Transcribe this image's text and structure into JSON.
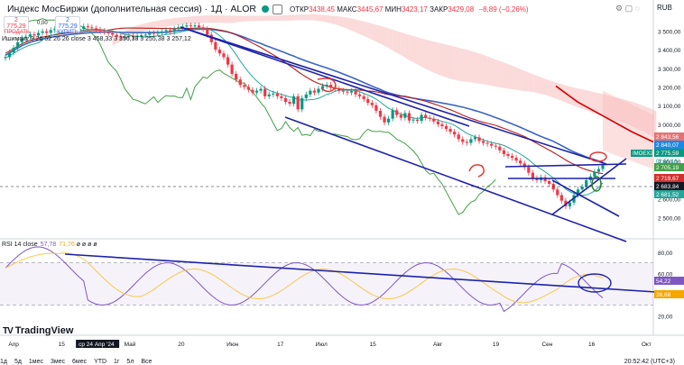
{
  "header": {
    "symbol": "Индекс МосБиржи (дополнительная сессия) · 1Д · ALOR",
    "open_label": "ОТКР",
    "open": "3438,45",
    "high_label": "МАКС",
    "high": "3445,67",
    "low_label": "МИН",
    "low": "3423,17",
    "close_label": "ЗАКР",
    "close": "3429,08",
    "change": "−8,89 (−0,26%)",
    "currency": "RUB",
    "sell_price": "2 775,29",
    "sell_label": "ПРОДАТЬ",
    "buy_price": "2 775,29",
    "buy_label": "КУПИТЬ",
    "spread": "0,00"
  },
  "ichimoku_label": "Ишимоку 9 26 52 26 26 close  3 458,33  3 356,38  3 255,38  3 257,12",
  "rsi_label": {
    "name": "RSI 14 close",
    "value": "57,78",
    "ma": "71,76",
    "extra": "ø ø ø ø"
  },
  "logo": {
    "mark": "TV",
    "text": "TradingView"
  },
  "bottom_bar": {
    "ranges": [
      "1д",
      "5д",
      "1мес",
      "3мес",
      "6мес",
      "YTD",
      "1г",
      "5л",
      "Все"
    ],
    "clock": "20:52:42 (UTC+3)"
  },
  "colors": {
    "candle_up": "#089981",
    "candle_down": "#f23645",
    "blue_line": "#1e22aa",
    "ema": "#3b64c7",
    "kijun": "#b71c1c",
    "tenkan": "#26a69a",
    "lagging": "#43a047",
    "cloud_green": "#a5d6a7",
    "cloud_red": "#f8bbbb",
    "rsi": "#7e57c2",
    "rsi_ma": "#f7c948",
    "annot": "#e53935"
  },
  "chart_data": [
    {
      "type": "candlestick",
      "title": "Индекс МосБиржи (дополнительная сессия) · 1Д · ALOR",
      "ylim": [
        2400,
        3560
      ],
      "y_ticks": [
        "3 500,00",
        "3 400,00",
        "3 300,00",
        "3 200,00",
        "3 100,00",
        "3 000,00",
        "2 900,00",
        "2 800,00",
        "2 700,00",
        "2 600,00",
        "2 500,00"
      ],
      "y_tick_values": [
        3500,
        3400,
        3300,
        3200,
        3100,
        3000,
        2900,
        2800,
        2700,
        2600,
        2500
      ],
      "x_ticks": [
        "Апр",
        "15",
        "ср 24 Апр '24",
        "Май",
        "20",
        "Июн",
        "17",
        "Июл",
        "15",
        "Авг",
        "19",
        "Сен",
        "16",
        "Окт"
      ],
      "close_series": [
        3360,
        3385,
        3410,
        3440,
        3462,
        3470,
        3482,
        3476,
        3490,
        3498,
        3490,
        3505,
        3512,
        3500,
        3510,
        3520,
        3515,
        3505,
        3512,
        3525,
        3520,
        3515,
        3508,
        3500,
        3495,
        3488,
        3480,
        3470,
        3465,
        3468,
        3472,
        3470,
        3475,
        3478,
        3480,
        3490,
        3486,
        3492,
        3498,
        3505,
        3495,
        3512,
        3520,
        3524,
        3530,
        3528,
        3530,
        3520,
        3510,
        3480,
        3440,
        3400,
        3380,
        3360,
        3320,
        3270,
        3240,
        3210,
        3200,
        3185,
        3170,
        3180,
        3190,
        3150,
        3160,
        3165,
        3150,
        3140,
        3120,
        3110,
        3150,
        3080,
        3140,
        3160,
        3180,
        3170,
        3190,
        3205,
        3212,
        3196,
        3188,
        3180,
        3175,
        3170,
        3178,
        3160,
        3150,
        3135,
        3115,
        3102,
        3072,
        3040,
        3010,
        3030,
        3075,
        3050,
        3035,
        3060,
        3020,
        3025,
        3018,
        3050,
        3035,
        3030,
        3015,
        3000,
        2990,
        2975,
        2960,
        2945,
        2920,
        2905,
        2900,
        2920,
        2930,
        2910,
        2900,
        2895,
        2885,
        2880,
        2860,
        2840,
        2830,
        2820,
        2805,
        2790,
        2770,
        2740,
        2710,
        2700,
        2715,
        2695,
        2680,
        2650,
        2620,
        2590,
        2560,
        2580,
        2620,
        2650,
        2665,
        2700,
        2720,
        2745,
        2760,
        2780
      ],
      "last_price": "2 775,59",
      "price_labels": [
        "2 843,56",
        "2 840,07",
        "2 775,59",
        "2 683,84",
        "2 681,52",
        "2 705,19",
        "2 719,67"
      ],
      "annotation": "IMOEX2",
      "countdown": "02:56:16",
      "indicators": [
        "Ichimoku 9 26 52 26 26",
        "EMA",
        "Tenkan",
        "Kijun",
        "Chikou"
      ]
    },
    {
      "type": "line",
      "title": "RSI 14 close",
      "ylim": [
        10,
        90
      ],
      "y_ticks": [
        "80,00",
        "60,00",
        "40,00",
        "20,00"
      ],
      "y_tick_values": [
        80,
        60,
        40,
        20
      ],
      "levels": [
        70,
        30
      ],
      "rsi_last": "57,78",
      "rsi_ma_last": "71,76",
      "axis_labels": [
        "54,22",
        "39,68"
      ]
    }
  ]
}
